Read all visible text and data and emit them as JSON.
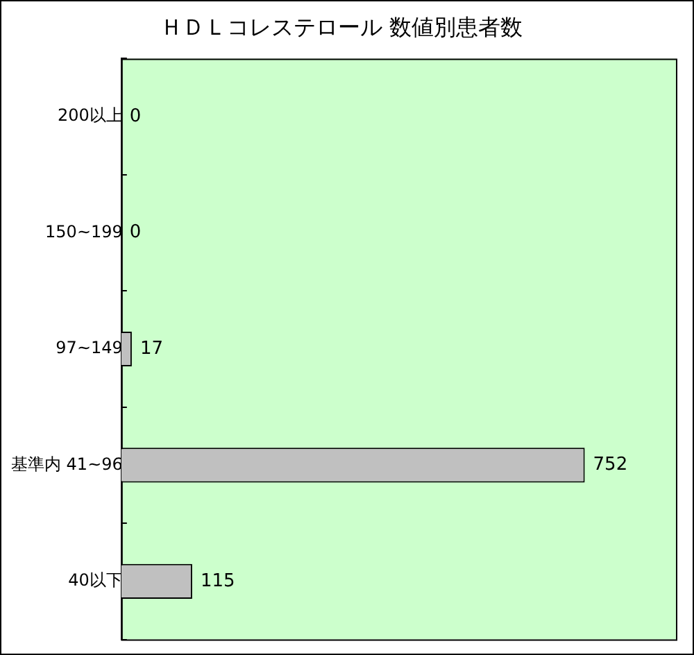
{
  "chart_data": {
    "type": "bar",
    "orientation": "horizontal",
    "title": "ＨＤＬコレステロール 数値別患者数",
    "categories": [
      "200以上",
      "150~199",
      "97~149",
      "基準内 41~96",
      "40以下"
    ],
    "values": [
      0,
      0,
      17,
      752,
      115
    ],
    "color": "#c0c0c0",
    "data_labels": true,
    "grid": false,
    "legend": false
  }
}
